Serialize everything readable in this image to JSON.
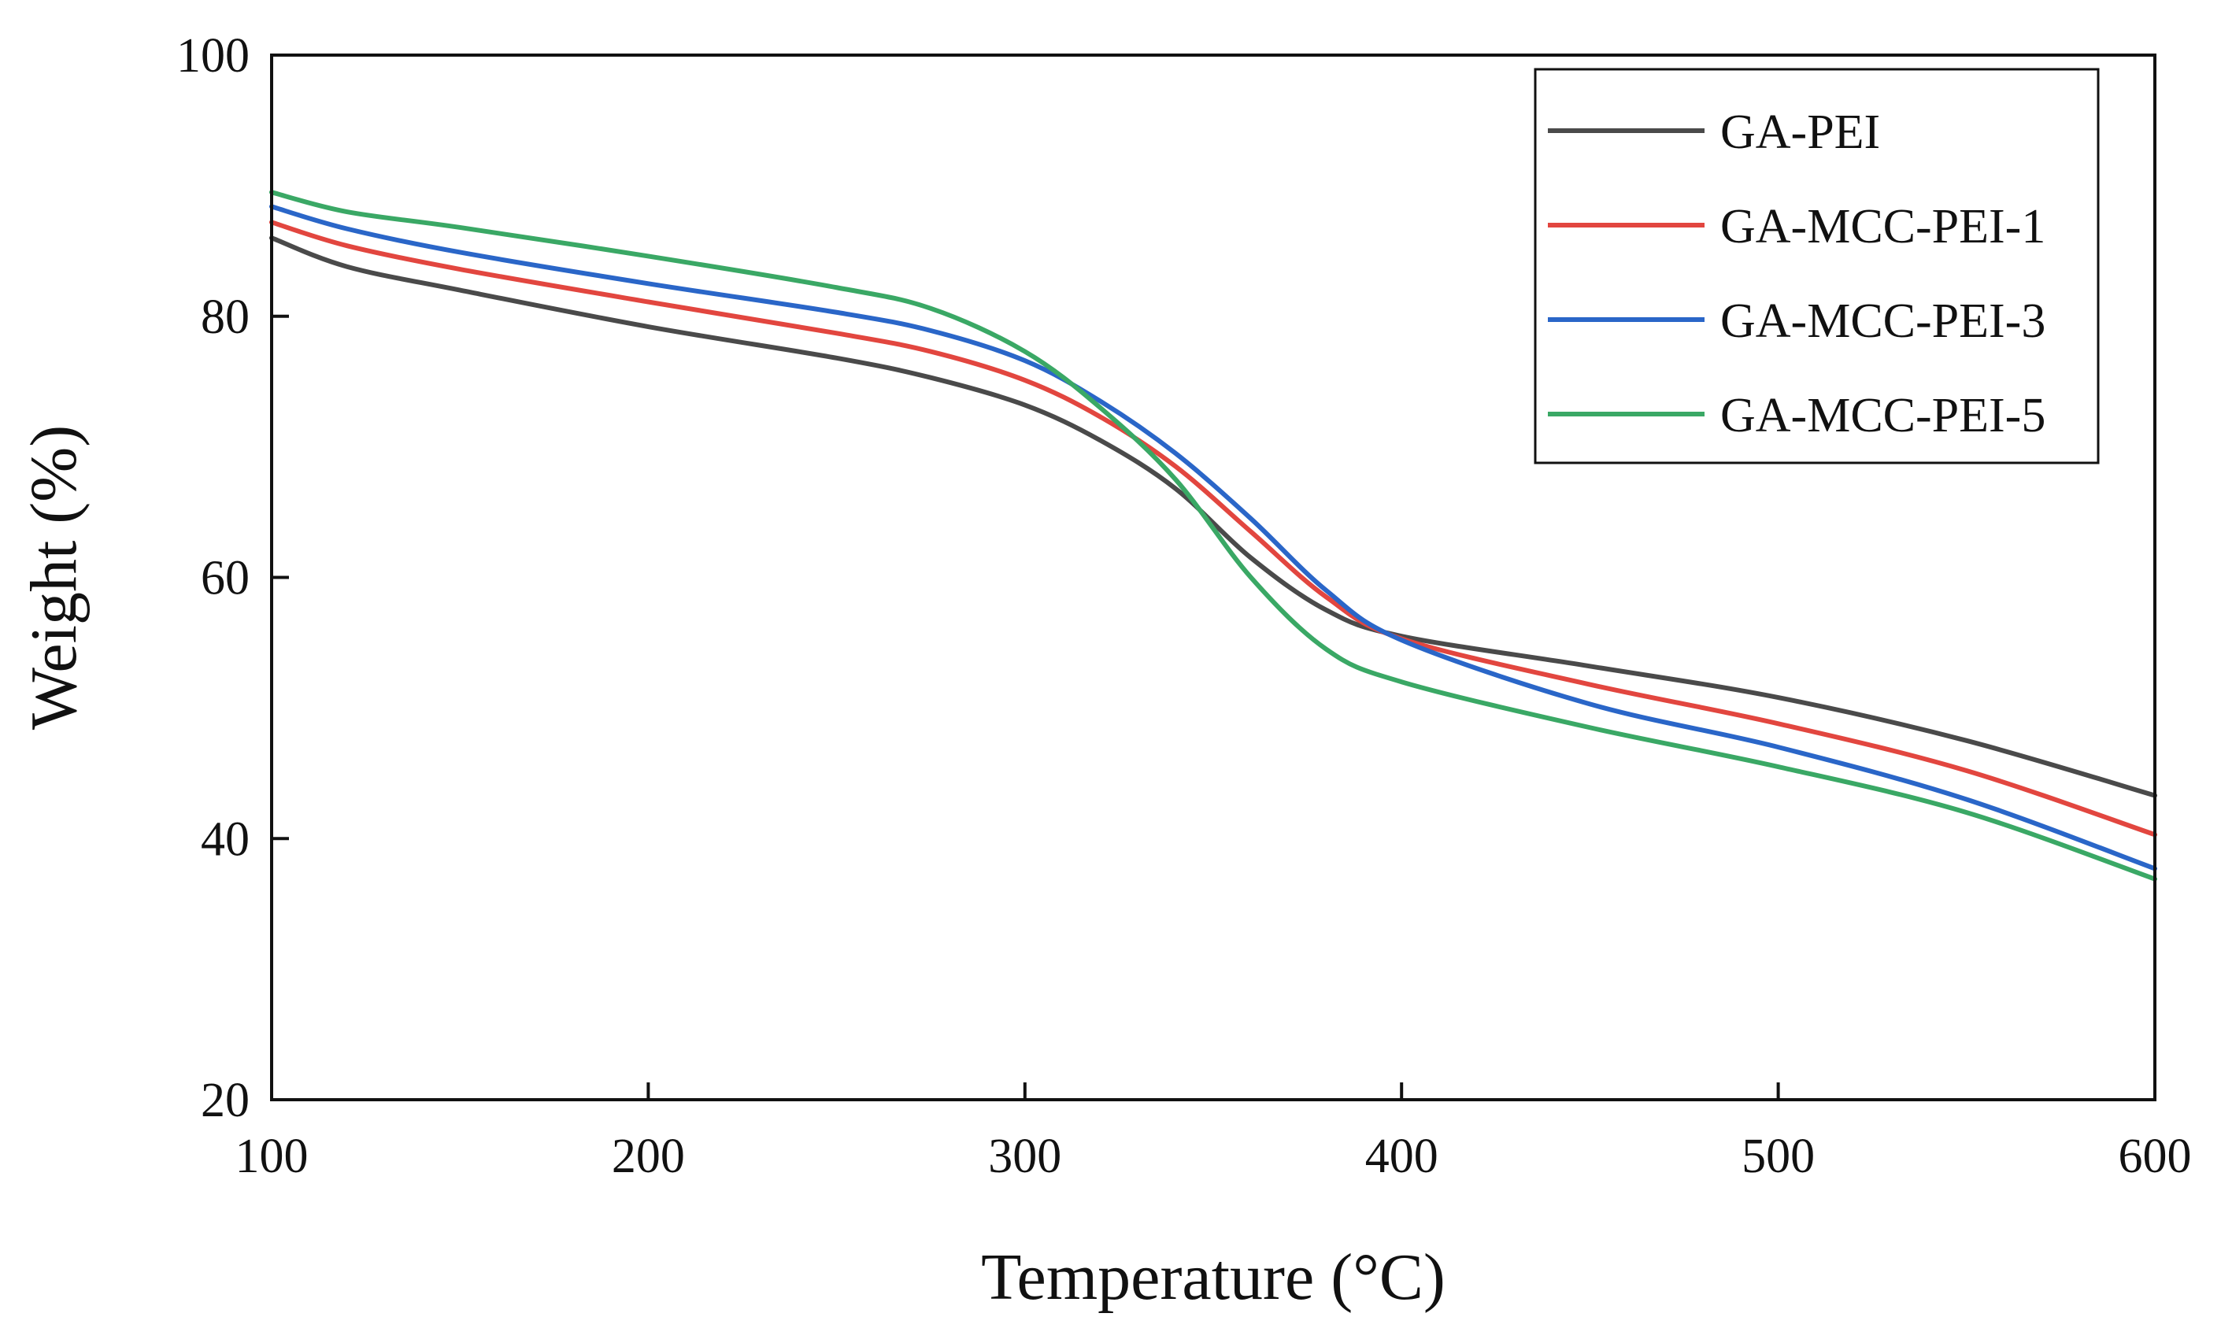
{
  "chart_data": {
    "type": "line",
    "title": "",
    "xlabel": "Temperature (°C)",
    "ylabel": "Weight (%)",
    "xlim": [
      100,
      600
    ],
    "ylim": [
      20,
      100
    ],
    "xticks": [
      100,
      200,
      300,
      400,
      500,
      600
    ],
    "yticks": [
      20,
      40,
      60,
      80,
      100
    ],
    "xtick_labels": [
      "100",
      "200",
      "300",
      "400",
      "500",
      "600"
    ],
    "ytick_labels": [
      "20",
      "40",
      "60",
      "80",
      "100"
    ],
    "grid": false,
    "legend_position": "top-right",
    "x": [
      100,
      120,
      150,
      200,
      250,
      275,
      300,
      320,
      340,
      360,
      380,
      400,
      450,
      500,
      550,
      600
    ],
    "series": [
      {
        "name": "GA-PEI",
        "color": "#4a4a4a",
        "values": [
          86.0,
          83.8,
          82.0,
          79.2,
          76.8,
          75.3,
          73.2,
          70.5,
          66.8,
          61.5,
          57.5,
          55.5,
          53.2,
          50.8,
          47.5,
          43.3
        ]
      },
      {
        "name": "GA-MCC-PEI-1",
        "color": "#e2463f",
        "values": [
          87.2,
          85.4,
          83.6,
          81.1,
          78.7,
          77.3,
          75.1,
          72.3,
          68.5,
          63.5,
          58.5,
          55.3,
          51.8,
          48.8,
          45.2,
          40.3
        ]
      },
      {
        "name": "GA-MCC-PEI-3",
        "color": "#2a66c8",
        "values": [
          88.4,
          86.7,
          84.9,
          82.5,
          80.3,
          78.9,
          76.6,
          73.5,
          69.5,
          64.5,
          59.0,
          55.2,
          50.3,
          47.0,
          43.0,
          37.7
        ]
      },
      {
        "name": "GA-MCC-PEI-5",
        "color": "#3aa865",
        "values": [
          89.5,
          88.0,
          86.8,
          84.6,
          82.2,
          80.6,
          77.3,
          73.0,
          67.5,
          60.0,
          54.5,
          52.0,
          48.5,
          45.5,
          42.0,
          36.9
        ]
      }
    ]
  }
}
